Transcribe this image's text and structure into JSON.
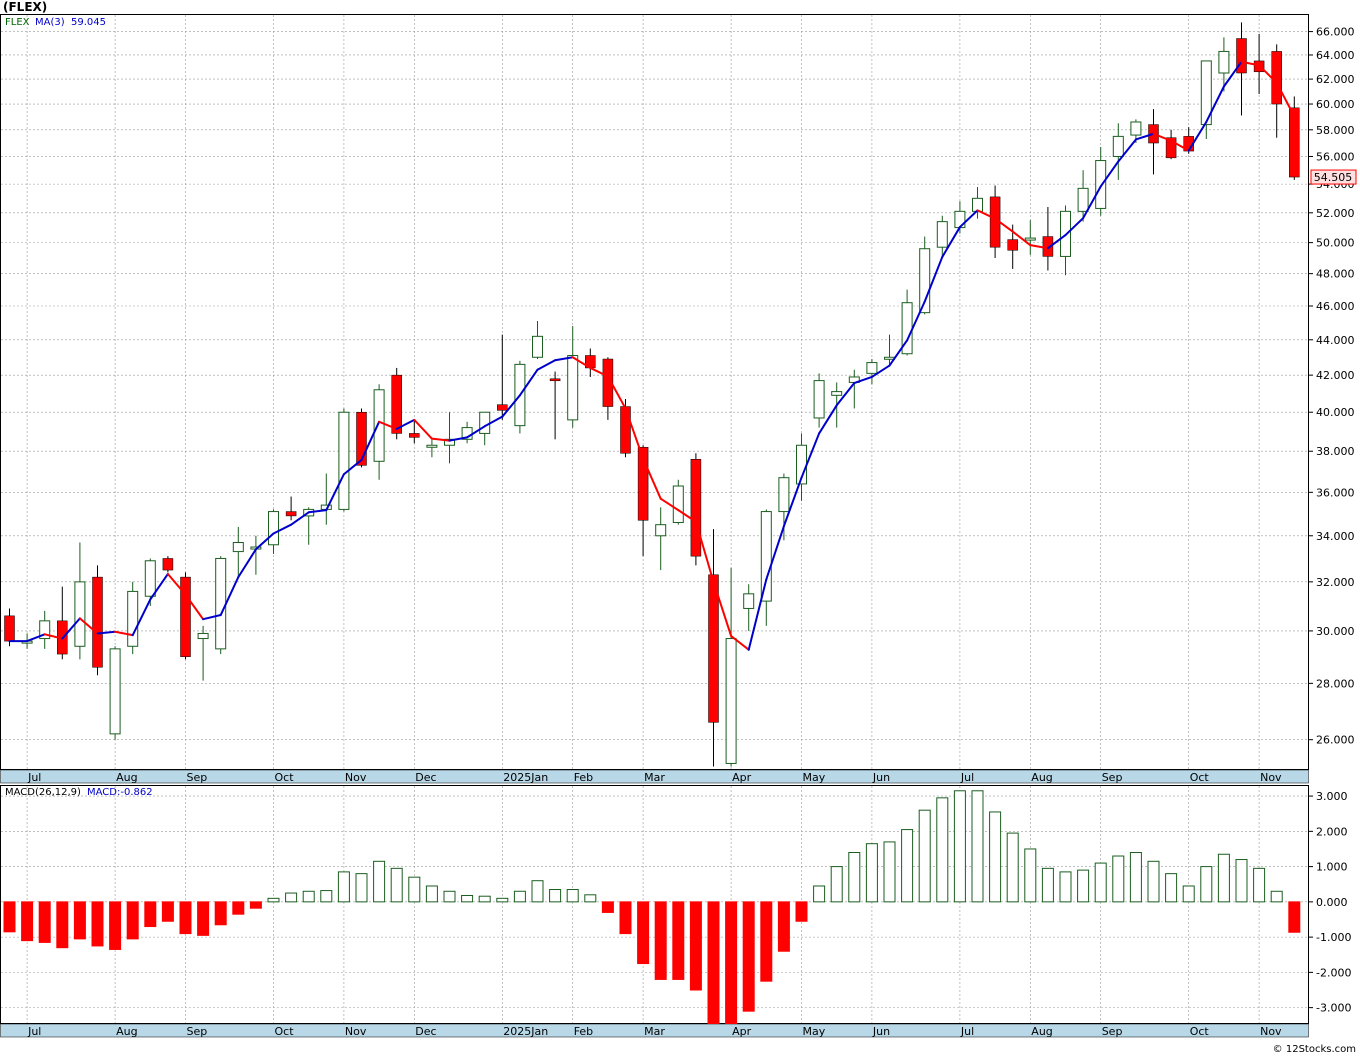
{
  "header": {
    "title": "(FLEX)",
    "price_legend_symbol": "FLEX",
    "price_legend_ma": "MA(3)",
    "price_legend_ma_value": "59.045",
    "last_price_tag": "54.505",
    "macd_legend_name": "MACD(26,12,9)",
    "macd_legend_value": "MACD:-0.862",
    "footer": "© 12Stocks.com"
  },
  "colors": {
    "up_candle_fill": "#ffffff",
    "up_candle_border": "#1b5e20",
    "down_candle": "#ff0000",
    "ma_up": "#0000cc",
    "ma_down": "#ff0000",
    "axis_band": "#b8d8e8",
    "grid": "#999999"
  },
  "chart_data": [
    {
      "type": "candlestick",
      "title": "(FLEX)",
      "price_axis_ticks": [
        "26.000",
        "28.000",
        "30.000",
        "32.000",
        "34.000",
        "36.000",
        "38.000",
        "40.000",
        "42.000",
        "44.000",
        "46.000",
        "48.000",
        "50.000",
        "52.000",
        "54.000",
        "56.000",
        "58.000",
        "60.000",
        "62.000",
        "64.000",
        "66.000"
      ],
      "month_labels": [
        "Jul",
        "Aug",
        "Sep",
        "Oct",
        "Nov",
        "Dec",
        "2025Jan",
        "Feb",
        "Mar",
        "Apr",
        "May",
        "Jun",
        "Jul",
        "Aug",
        "Sep",
        "Oct",
        "Nov"
      ],
      "month_label_weeks": [
        1,
        6,
        10,
        15,
        19,
        23,
        28,
        32,
        36,
        41,
        45,
        49,
        54,
        58,
        62,
        67,
        71
      ],
      "ylim": [
        25.0,
        67.5
      ],
      "scale": "log",
      "grid": true,
      "candles": [
        {
          "o": 30.6,
          "h": 30.9,
          "l": 29.4,
          "c": 29.6
        },
        {
          "o": 29.6,
          "h": 29.9,
          "l": 29.3,
          "c": 29.6
        },
        {
          "o": 29.7,
          "h": 30.8,
          "l": 29.3,
          "c": 30.4
        },
        {
          "o": 30.4,
          "h": 31.8,
          "l": 28.9,
          "c": 29.1
        },
        {
          "o": 29.4,
          "h": 33.7,
          "l": 28.9,
          "c": 32.0
        },
        {
          "o": 32.2,
          "h": 32.7,
          "l": 28.3,
          "c": 28.6
        },
        {
          "o": 26.2,
          "h": 29.4,
          "l": 26.0,
          "c": 29.3
        },
        {
          "o": 29.4,
          "h": 32.0,
          "l": 29.1,
          "c": 31.6
        },
        {
          "o": 31.4,
          "h": 33.0,
          "l": 31.0,
          "c": 32.9
        },
        {
          "o": 33.0,
          "h": 33.1,
          "l": 32.4,
          "c": 32.5
        },
        {
          "o": 32.2,
          "h": 32.4,
          "l": 28.9,
          "c": 29.0
        },
        {
          "o": 29.7,
          "h": 30.2,
          "l": 28.1,
          "c": 29.9
        },
        {
          "o": 29.3,
          "h": 33.1,
          "l": 29.1,
          "c": 33.0
        },
        {
          "o": 33.3,
          "h": 34.4,
          "l": 32.2,
          "c": 33.7
        },
        {
          "o": 33.5,
          "h": 34.0,
          "l": 32.3,
          "c": 33.5
        },
        {
          "o": 33.6,
          "h": 35.2,
          "l": 33.2,
          "c": 35.1
        },
        {
          "o": 35.1,
          "h": 35.8,
          "l": 34.7,
          "c": 34.9
        },
        {
          "o": 34.9,
          "h": 35.3,
          "l": 33.6,
          "c": 35.2
        },
        {
          "o": 35.2,
          "h": 36.9,
          "l": 34.5,
          "c": 35.4
        },
        {
          "o": 35.2,
          "h": 40.2,
          "l": 35.1,
          "c": 40.0
        },
        {
          "o": 40.0,
          "h": 40.2,
          "l": 37.2,
          "c": 37.3
        },
        {
          "o": 37.5,
          "h": 41.5,
          "l": 36.6,
          "c": 41.2
        },
        {
          "o": 42.0,
          "h": 42.4,
          "l": 38.6,
          "c": 38.9
        },
        {
          "o": 38.9,
          "h": 39.6,
          "l": 38.4,
          "c": 38.7
        },
        {
          "o": 38.3,
          "h": 38.6,
          "l": 37.7,
          "c": 38.3
        },
        {
          "o": 38.3,
          "h": 40.0,
          "l": 37.4,
          "c": 38.6
        },
        {
          "o": 38.6,
          "h": 39.5,
          "l": 38.4,
          "c": 39.2
        },
        {
          "o": 38.9,
          "h": 40.0,
          "l": 38.3,
          "c": 40.0
        },
        {
          "o": 40.4,
          "h": 44.3,
          "l": 39.6,
          "c": 40.1
        },
        {
          "o": 39.3,
          "h": 42.8,
          "l": 38.9,
          "c": 42.6
        },
        {
          "o": 43.0,
          "h": 45.1,
          "l": 42.9,
          "c": 44.2
        },
        {
          "o": 41.8,
          "h": 42.2,
          "l": 38.6,
          "c": 41.7
        },
        {
          "o": 39.6,
          "h": 44.8,
          "l": 39.2,
          "c": 43.1
        },
        {
          "o": 43.1,
          "h": 43.5,
          "l": 41.9,
          "c": 42.4
        },
        {
          "o": 42.9,
          "h": 43.0,
          "l": 39.6,
          "c": 40.3
        },
        {
          "o": 40.3,
          "h": 40.7,
          "l": 37.7,
          "c": 37.9
        },
        {
          "o": 38.2,
          "h": 38.3,
          "l": 33.1,
          "c": 34.7
        },
        {
          "o": 34.0,
          "h": 35.3,
          "l": 32.5,
          "c": 34.5
        },
        {
          "o": 34.6,
          "h": 36.6,
          "l": 34.5,
          "c": 36.3
        },
        {
          "o": 37.6,
          "h": 37.9,
          "l": 32.7,
          "c": 33.1
        },
        {
          "o": 32.3,
          "h": 34.3,
          "l": 25.1,
          "c": 26.6
        },
        {
          "o": 25.2,
          "h": 32.6,
          "l": 25.1,
          "c": 29.7
        },
        {
          "o": 30.9,
          "h": 31.9,
          "l": 30.0,
          "c": 31.5
        },
        {
          "o": 31.2,
          "h": 35.2,
          "l": 30.2,
          "c": 35.1
        },
        {
          "o": 35.1,
          "h": 36.9,
          "l": 33.8,
          "c": 36.7
        },
        {
          "o": 36.4,
          "h": 38.9,
          "l": 35.6,
          "c": 38.3
        },
        {
          "o": 39.7,
          "h": 42.1,
          "l": 39.2,
          "c": 41.7
        },
        {
          "o": 40.9,
          "h": 41.6,
          "l": 39.2,
          "c": 41.1
        },
        {
          "o": 41.6,
          "h": 42.3,
          "l": 40.2,
          "c": 41.9
        },
        {
          "o": 42.1,
          "h": 42.9,
          "l": 41.5,
          "c": 42.7
        },
        {
          "o": 43.0,
          "h": 44.3,
          "l": 42.6,
          "c": 43.0
        },
        {
          "o": 43.2,
          "h": 47.0,
          "l": 43.1,
          "c": 46.2
        },
        {
          "o": 45.6,
          "h": 50.4,
          "l": 45.5,
          "c": 49.6
        },
        {
          "o": 49.7,
          "h": 51.8,
          "l": 49.0,
          "c": 51.4
        },
        {
          "o": 51.0,
          "h": 52.8,
          "l": 50.6,
          "c": 52.1
        },
        {
          "o": 52.1,
          "h": 53.8,
          "l": 51.6,
          "c": 53.0
        },
        {
          "o": 53.1,
          "h": 53.9,
          "l": 49.0,
          "c": 49.7
        },
        {
          "o": 50.2,
          "h": 51.2,
          "l": 48.3,
          "c": 49.5
        },
        {
          "o": 50.3,
          "h": 51.5,
          "l": 49.2,
          "c": 50.3
        },
        {
          "o": 50.4,
          "h": 52.4,
          "l": 48.2,
          "c": 49.1
        },
        {
          "o": 49.1,
          "h": 52.5,
          "l": 47.9,
          "c": 52.1
        },
        {
          "o": 52.1,
          "h": 55.0,
          "l": 51.4,
          "c": 53.7
        },
        {
          "o": 52.3,
          "h": 56.7,
          "l": 51.8,
          "c": 55.7
        },
        {
          "o": 56.0,
          "h": 58.5,
          "l": 54.3,
          "c": 57.5
        },
        {
          "o": 57.6,
          "h": 58.8,
          "l": 57.0,
          "c": 58.6
        },
        {
          "o": 58.4,
          "h": 59.6,
          "l": 54.7,
          "c": 57.0
        },
        {
          "o": 57.4,
          "h": 58.0,
          "l": 55.8,
          "c": 55.9
        },
        {
          "o": 57.5,
          "h": 58.2,
          "l": 56.2,
          "c": 56.4
        },
        {
          "o": 58.4,
          "h": 63.5,
          "l": 57.3,
          "c": 63.5
        },
        {
          "o": 62.5,
          "h": 65.5,
          "l": 61.0,
          "c": 64.3
        },
        {
          "o": 65.4,
          "h": 66.8,
          "l": 59.1,
          "c": 62.5
        },
        {
          "o": 63.5,
          "h": 65.8,
          "l": 60.8,
          "c": 62.6
        },
        {
          "o": 64.3,
          "h": 64.9,
          "l": 57.4,
          "c": 60.0
        },
        {
          "o": 59.7,
          "h": 60.6,
          "l": 54.3,
          "c": 54.505
        }
      ]
    },
    {
      "type": "bar",
      "title": "MACD(26,12,9)",
      "ylim": [
        -3.45,
        3.3
      ],
      "y_ticks": [
        "-3.000",
        "-2.000",
        "-1.000",
        "0.000",
        "1.000",
        "2.000",
        "3.000"
      ],
      "values": [
        -0.85,
        -1.1,
        -1.15,
        -1.3,
        -1.05,
        -1.25,
        -1.35,
        -1.05,
        -0.7,
        -0.55,
        -0.9,
        -0.95,
        -0.65,
        -0.35,
        -0.18,
        0.1,
        0.25,
        0.3,
        0.32,
        0.85,
        0.8,
        1.15,
        0.95,
        0.7,
        0.45,
        0.3,
        0.18,
        0.16,
        0.1,
        0.3,
        0.6,
        0.35,
        0.35,
        0.2,
        -0.3,
        -0.9,
        -1.75,
        -2.2,
        -2.2,
        -2.5,
        -3.45,
        -3.45,
        -3.1,
        -2.25,
        -1.4,
        -0.55,
        0.45,
        1.0,
        1.4,
        1.65,
        1.7,
        2.05,
        2.6,
        2.95,
        3.15,
        3.15,
        2.55,
        1.95,
        1.5,
        0.95,
        0.85,
        0.9,
        1.1,
        1.3,
        1.4,
        1.15,
        0.8,
        0.45,
        1.0,
        1.35,
        1.2,
        0.95,
        0.3,
        -0.862
      ]
    }
  ]
}
